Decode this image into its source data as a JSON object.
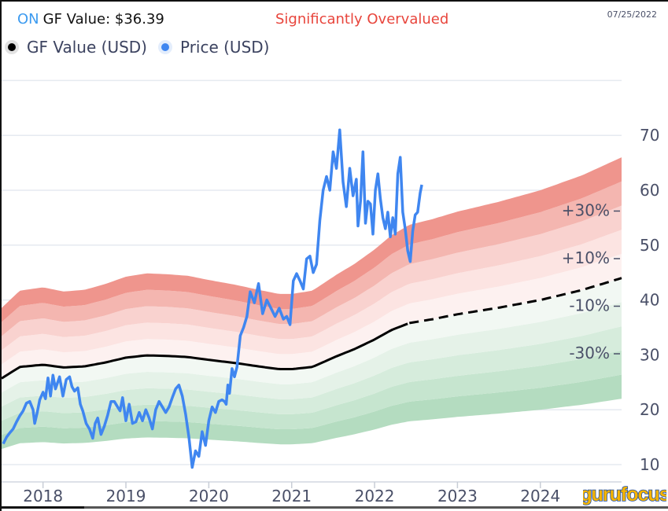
{
  "header": {
    "ticker": "ON",
    "gf_value_text": "GF Value: $36.39",
    "valuation_status": "Significantly Overvalued",
    "date": "07/25/2022"
  },
  "legend": {
    "items": [
      {
        "label": "GF Value (USD)",
        "color": "#000000"
      },
      {
        "label": "Price (USD)",
        "color": "#3f86f0"
      }
    ]
  },
  "branding": {
    "logo_text": "gurufocus"
  },
  "colors": {
    "price": "#3f86f0",
    "gf_value": "#000000",
    "over_bands": [
      "#fdf1f0",
      "#fce4e2",
      "#f9d2cf",
      "#f4b6b0",
      "#ef958d"
    ],
    "under_bands": [
      "#f2f8f3",
      "#e5f2e8",
      "#d6ecdc",
      "#c6e5cf",
      "#b4dcc0"
    ],
    "grid": "#e6eaf0",
    "axis_text": "#4a5068"
  },
  "chart_data": {
    "type": "line",
    "title": "GF Value: $36.39",
    "xlabel": "",
    "ylabel": "",
    "xlim": [
      2017.5,
      2024.98
    ],
    "ylim": [
      7.5,
      82
    ],
    "grid": true,
    "legend_position": "top-left",
    "x_ticks": [
      {
        "value": 2018,
        "label": "2018"
      },
      {
        "value": 2019,
        "label": "2019"
      },
      {
        "value": 2020,
        "label": "2020"
      },
      {
        "value": 2021,
        "label": "2021"
      },
      {
        "value": 2022,
        "label": "2022"
      },
      {
        "value": 2023,
        "label": "2023"
      },
      {
        "value": 2024,
        "label": "2024"
      }
    ],
    "y_ticks": [
      {
        "value": 10,
        "label": "10"
      },
      {
        "value": 20,
        "label": "20"
      },
      {
        "value": 30,
        "label": "30"
      },
      {
        "value": 40,
        "label": "40"
      },
      {
        "value": 50,
        "label": "50"
      },
      {
        "value": 60,
        "label": "60"
      },
      {
        "value": 70,
        "label": "70"
      }
    ],
    "y_grid_extra": [
      80
    ],
    "band_multipliers": [
      0.5,
      0.6,
      0.7,
      0.8,
      0.9,
      1.0,
      1.1,
      1.2,
      1.3,
      1.4,
      1.5
    ],
    "band_labels": [
      {
        "label": "+30%",
        "multiplier": 1.3
      },
      {
        "label": "+10%",
        "multiplier": 1.1
      },
      {
        "label": "-10%",
        "multiplier": 0.9
      },
      {
        "label": "-30%",
        "multiplier": 0.7
      }
    ],
    "gf_value_split_x": 2022.42,
    "series": [
      {
        "name": "GF Value (USD)",
        "style": "solid-then-dashed",
        "x": [
          2017.5,
          2017.72,
          2018.0,
          2018.25,
          2018.5,
          2018.75,
          2019.0,
          2019.25,
          2019.5,
          2019.75,
          2020.0,
          2020.33,
          2020.6,
          2020.85,
          2021.0,
          2021.25,
          2021.55,
          2021.75,
          2022.0,
          2022.2,
          2022.42,
          2022.7,
          2023.0,
          2023.5,
          2024.0,
          2024.5,
          2024.98
        ],
        "values": [
          25.7,
          27.8,
          28.2,
          27.7,
          27.9,
          28.6,
          29.5,
          29.9,
          29.8,
          29.6,
          29.1,
          28.5,
          27.9,
          27.4,
          27.4,
          27.8,
          29.8,
          31.0,
          32.8,
          34.5,
          35.8,
          36.5,
          37.4,
          38.6,
          40.0,
          41.8,
          44.0
        ]
      },
      {
        "name": "Price (USD)",
        "x": [
          2017.52,
          2017.56,
          2017.6,
          2017.64,
          2017.68,
          2017.72,
          2017.76,
          2017.8,
          2017.84,
          2017.88,
          2017.9,
          2017.93,
          2017.96,
          2018.0,
          2018.03,
          2018.06,
          2018.09,
          2018.12,
          2018.15,
          2018.2,
          2018.24,
          2018.28,
          2018.32,
          2018.35,
          2018.38,
          2018.42,
          2018.45,
          2018.48,
          2018.52,
          2018.56,
          2018.6,
          2018.63,
          2018.66,
          2018.7,
          2018.74,
          2018.78,
          2018.82,
          2018.86,
          2018.9,
          2018.93,
          2018.96,
          2019.0,
          2019.04,
          2019.08,
          2019.12,
          2019.16,
          2019.2,
          2019.24,
          2019.28,
          2019.32,
          2019.36,
          2019.4,
          2019.44,
          2019.48,
          2019.52,
          2019.56,
          2019.6,
          2019.64,
          2019.68,
          2019.72,
          2019.76,
          2019.8,
          2019.84,
          2019.88,
          2019.92,
          2019.96,
          2020.0,
          2020.04,
          2020.08,
          2020.12,
          2020.16,
          2020.19,
          2020.21,
          2020.23,
          2020.25,
          2020.28,
          2020.31,
          2020.34,
          2020.38,
          2020.42,
          2020.46,
          2020.5,
          2020.55,
          2020.6,
          2020.65,
          2020.7,
          2020.75,
          2020.8,
          2020.85,
          2020.9,
          2020.94,
          2020.98,
          2021.02,
          2021.06,
          2021.1,
          2021.14,
          2021.18,
          2021.22,
          2021.26,
          2021.3,
          2021.34,
          2021.38,
          2021.42,
          2021.46,
          2021.5,
          2021.54,
          2021.58,
          2021.62,
          2021.66,
          2021.7,
          2021.74,
          2021.78,
          2021.8,
          2021.83,
          2021.86,
          2021.89,
          2021.92,
          2021.95,
          2021.98,
          2022.01,
          2022.04,
          2022.07,
          2022.1,
          2022.13,
          2022.16,
          2022.19,
          2022.22,
          2022.25,
          2022.28,
          2022.31,
          2022.34,
          2022.37,
          2022.4,
          2022.43,
          2022.46,
          2022.49,
          2022.52,
          2022.55,
          2022.57
        ],
        "values": [
          13.8,
          15.0,
          15.8,
          16.5,
          17.8,
          18.9,
          19.8,
          21.2,
          21.5,
          20.0,
          17.5,
          19.5,
          21.8,
          23.2,
          22.0,
          25.8,
          22.5,
          26.3,
          23.8,
          26.0,
          22.5,
          25.5,
          26.0,
          24.2,
          23.4,
          24.0,
          21.0,
          19.8,
          17.5,
          16.5,
          14.8,
          17.5,
          18.5,
          15.5,
          17.0,
          19.0,
          21.5,
          21.5,
          20.5,
          19.8,
          22.2,
          18.0,
          21.0,
          17.5,
          17.8,
          19.5,
          18.0,
          20.0,
          18.5,
          16.5,
          20.0,
          21.5,
          20.5,
          19.5,
          20.5,
          22.2,
          23.8,
          24.5,
          22.5,
          19.2,
          15.0,
          9.5,
          12.5,
          11.5,
          16.0,
          13.5,
          18.0,
          20.5,
          19.5,
          21.5,
          21.8,
          21.5,
          21.0,
          24.5,
          23.0,
          27.5,
          26.0,
          27.8,
          33.5,
          35.0,
          37.0,
          41.5,
          39.5,
          43.0,
          37.5,
          40.0,
          38.5,
          37.0,
          38.5,
          36.5,
          37.0,
          35.5,
          43.5,
          44.8,
          43.5,
          42.0,
          47.5,
          48.0,
          45.0,
          46.5,
          54.5,
          60.0,
          62.5,
          60.0,
          67.0,
          64.0,
          71.0,
          61.5,
          57.0,
          64.0,
          59.0,
          62.0,
          53.5,
          58.0,
          67.0,
          54.0,
          58.0,
          57.5,
          52.0,
          60.0,
          63.0,
          58.5,
          55.0,
          53.0,
          56.0,
          51.5,
          55.0,
          52.0,
          63.0,
          66.0,
          56.0,
          53.0,
          49.0,
          47.0,
          52.5,
          55.5,
          56.0,
          59.5,
          61.0
        ]
      }
    ]
  }
}
